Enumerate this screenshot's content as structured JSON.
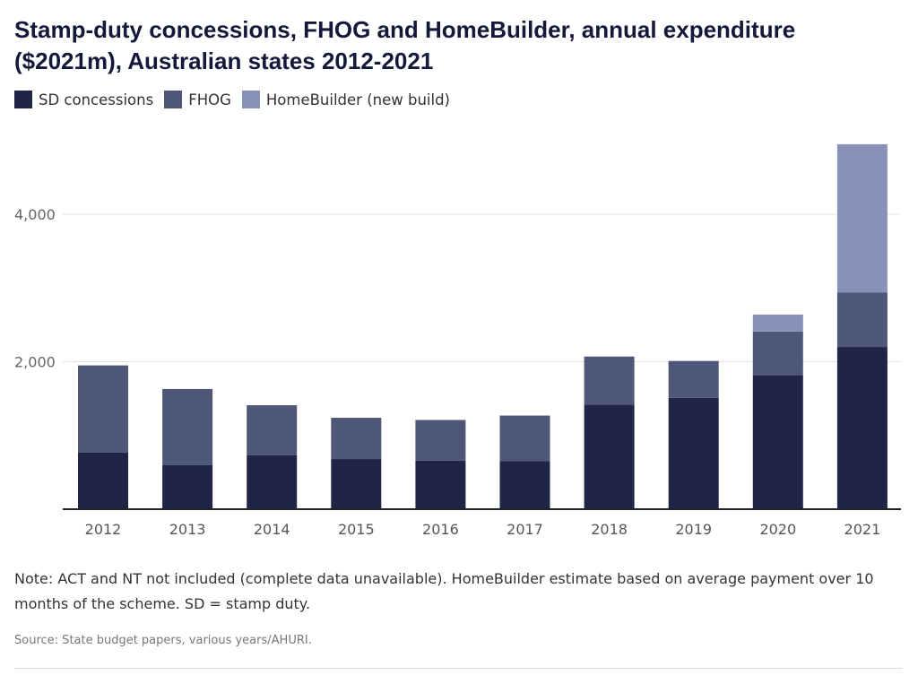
{
  "title": "Stamp-duty concessions, FHOG and HomeBuilder, annual expenditure ($2021m), Australian states 2012-2021",
  "note": "Note: ACT and NT not included (complete data unavailable). HomeBuilder estimate based on average payment over 10 months of the scheme. SD = stamp duty.",
  "source": "Source: State budget papers, various years/AHURI.",
  "chart_data": {
    "type": "bar",
    "stacked": true,
    "title": "Stamp-duty concessions, FHOG and HomeBuilder, annual expenditure ($2021m), Australian states 2012-2021",
    "xlabel": "",
    "ylabel": "",
    "categories": [
      "2012",
      "2013",
      "2014",
      "2015",
      "2016",
      "2017",
      "2018",
      "2019",
      "2020",
      "2021"
    ],
    "series": [
      {
        "name": "SD concessions",
        "color": "#1f2547",
        "values": [
          770,
          600,
          730,
          680,
          660,
          650,
          1420,
          1510,
          1820,
          2200
        ]
      },
      {
        "name": "FHOG",
        "color": "#4f5779",
        "values": [
          1180,
          1030,
          680,
          560,
          550,
          620,
          650,
          500,
          590,
          740
        ]
      },
      {
        "name": "HomeBuilder (new build)",
        "color": "#8a91b8",
        "values": [
          0,
          0,
          0,
          0,
          0,
          0,
          0,
          0,
          230,
          2010
        ]
      }
    ],
    "ylim": [
      0,
      5000
    ],
    "yticks": [
      2000,
      4000
    ],
    "ytick_labels": [
      "2,000",
      "4,000"
    ],
    "grid": true,
    "legend": "top-left"
  }
}
